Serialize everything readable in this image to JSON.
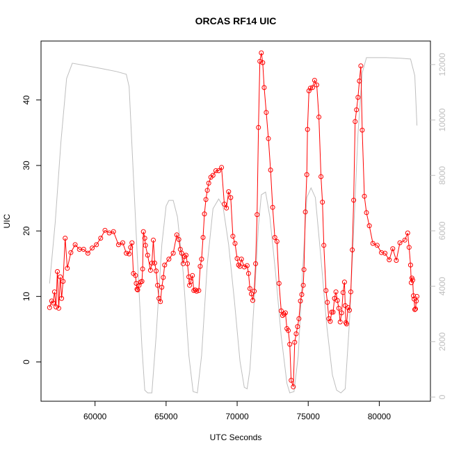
{
  "chart_data": {
    "type": "line",
    "title": "ORCAS RF14 UIC",
    "xlabel": "UTC Seconds",
    "ylabel": "UIC",
    "xlim": [
      56200,
      83600
    ],
    "ylim": [
      -6,
      49
    ],
    "y2lim": [
      -150,
      12850
    ],
    "x_ticks": [
      60000,
      65000,
      70000,
      75000,
      80000
    ],
    "y_ticks": [
      0,
      10,
      20,
      30,
      40
    ],
    "y2_ticks": [
      0,
      2000,
      4000,
      6000,
      8000,
      10000,
      12000
    ],
    "colors": {
      "uic": "#ff0000",
      "altitude": "#bebebe"
    },
    "series": [
      {
        "style": "line+circles",
        "color": "#ff0000",
        "axis": "left",
        "points": [
          [
            56800,
            8.3
          ],
          [
            56950,
            9.3
          ],
          [
            57050,
            9.0
          ],
          [
            57150,
            10.7
          ],
          [
            57250,
            8.4
          ],
          [
            57350,
            13.8
          ],
          [
            57450,
            8.2
          ],
          [
            57550,
            13.0
          ],
          [
            57650,
            9.7
          ],
          [
            57750,
            12.3
          ],
          [
            57900,
            18.9
          ],
          [
            58050,
            14.3
          ],
          [
            58300,
            16.7
          ],
          [
            58600,
            17.9
          ],
          [
            58900,
            17.2
          ],
          [
            59200,
            17.2
          ],
          [
            59500,
            16.6
          ],
          [
            59800,
            17.4
          ],
          [
            60100,
            17.9
          ],
          [
            60400,
            18.9
          ],
          [
            60700,
            20.1
          ],
          [
            61000,
            19.7
          ],
          [
            61300,
            19.9
          ],
          [
            61650,
            17.9
          ],
          [
            61950,
            18.2
          ],
          [
            62200,
            16.6
          ],
          [
            62400,
            16.5
          ],
          [
            62500,
            17.5
          ],
          [
            62600,
            18.2
          ],
          [
            62700,
            13.5
          ],
          [
            62850,
            13.2
          ],
          [
            62900,
            12.0
          ],
          [
            62950,
            11.1
          ],
          [
            63000,
            11.0
          ],
          [
            63100,
            11.7
          ],
          [
            63200,
            12.2
          ],
          [
            63300,
            12.3
          ],
          [
            63350,
            14.2
          ],
          [
            63400,
            19.9
          ],
          [
            63500,
            18.9
          ],
          [
            63550,
            17.8
          ],
          [
            63700,
            16.3
          ],
          [
            63900,
            14.0
          ],
          [
            64000,
            15.1
          ],
          [
            64100,
            18.6
          ],
          [
            64200,
            15.1
          ],
          [
            64300,
            13.9
          ],
          [
            64400,
            11.7
          ],
          [
            64500,
            9.7
          ],
          [
            64600,
            9.2
          ],
          [
            64700,
            11.4
          ],
          [
            64800,
            12.9
          ],
          [
            64900,
            14.8
          ],
          [
            65200,
            15.7
          ],
          [
            65500,
            16.6
          ],
          [
            65750,
            19.4
          ],
          [
            65900,
            18.7
          ],
          [
            66000,
            17.2
          ],
          [
            66100,
            16.6
          ],
          [
            66200,
            15.0
          ],
          [
            66300,
            16.1
          ],
          [
            66400,
            16.3
          ],
          [
            66500,
            15.0
          ],
          [
            66600,
            13.0
          ],
          [
            66650,
            11.7
          ],
          [
            66750,
            12.3
          ],
          [
            66850,
            13.2
          ],
          [
            66950,
            10.9
          ],
          [
            67050,
            11.0
          ],
          [
            67150,
            10.8
          ],
          [
            67300,
            10.9
          ],
          [
            67400,
            14.6
          ],
          [
            67500,
            15.7
          ],
          [
            67600,
            19.0
          ],
          [
            67700,
            22.6
          ],
          [
            67800,
            24.8
          ],
          [
            67900,
            26.2
          ],
          [
            68000,
            27.3
          ],
          [
            68150,
            28.2
          ],
          [
            68300,
            28.5
          ],
          [
            68500,
            29.2
          ],
          [
            68700,
            29.2
          ],
          [
            68900,
            29.7
          ],
          [
            69100,
            24.1
          ],
          [
            69250,
            23.5
          ],
          [
            69400,
            26.0
          ],
          [
            69550,
            25.1
          ],
          [
            69700,
            19.2
          ],
          [
            69850,
            18.1
          ],
          [
            70000,
            15.8
          ],
          [
            70100,
            14.8
          ],
          [
            70200,
            14.6
          ],
          [
            70300,
            15.7
          ],
          [
            70500,
            14.5
          ],
          [
            70700,
            14.7
          ],
          [
            70800,
            13.5
          ],
          [
            70900,
            11.2
          ],
          [
            71000,
            10.4
          ],
          [
            71100,
            9.4
          ],
          [
            71200,
            10.8
          ],
          [
            71300,
            15.0
          ],
          [
            71400,
            22.5
          ],
          [
            71500,
            35.8
          ],
          [
            71600,
            45.9
          ],
          [
            71700,
            47.2
          ],
          [
            71800,
            45.7
          ],
          [
            71900,
            41.9
          ],
          [
            72050,
            38.1
          ],
          [
            72200,
            34.1
          ],
          [
            72350,
            29.3
          ],
          [
            72500,
            23.6
          ],
          [
            72650,
            19.0
          ],
          [
            72800,
            18.4
          ],
          [
            72950,
            12.0
          ],
          [
            73100,
            7.8
          ],
          [
            73200,
            7.1
          ],
          [
            73300,
            7.3
          ],
          [
            73400,
            7.5
          ],
          [
            73500,
            5.1
          ],
          [
            73600,
            4.8
          ],
          [
            73700,
            2.7
          ],
          [
            73800,
            -2.8
          ],
          [
            73950,
            -3.8
          ],
          [
            74050,
            3.0
          ],
          [
            74150,
            4.3
          ],
          [
            74250,
            5.4
          ],
          [
            74350,
            6.6
          ],
          [
            74450,
            9.3
          ],
          [
            74550,
            10.3
          ],
          [
            74650,
            11.7
          ],
          [
            74700,
            14.1
          ],
          [
            74800,
            22.9
          ],
          [
            74900,
            28.6
          ],
          [
            74950,
            35.5
          ],
          [
            75050,
            41.4
          ],
          [
            75150,
            41.8
          ],
          [
            75300,
            41.9
          ],
          [
            75450,
            43.0
          ],
          [
            75600,
            42.3
          ],
          [
            75750,
            37.4
          ],
          [
            75900,
            28.3
          ],
          [
            76000,
            24.4
          ],
          [
            76100,
            17.8
          ],
          [
            76250,
            10.9
          ],
          [
            76350,
            9.1
          ],
          [
            76450,
            6.6
          ],
          [
            76550,
            6.2
          ],
          [
            76650,
            7.6
          ],
          [
            76750,
            7.6
          ],
          [
            76850,
            9.7
          ],
          [
            76950,
            10.7
          ],
          [
            77050,
            9.4
          ],
          [
            77150,
            8.2
          ],
          [
            77250,
            6.1
          ],
          [
            77350,
            7.5
          ],
          [
            77450,
            10.6
          ],
          [
            77550,
            12.2
          ],
          [
            77600,
            8.6
          ],
          [
            77650,
            6.0
          ],
          [
            77700,
            5.8
          ],
          [
            77800,
            8.3
          ],
          [
            77900,
            7.9
          ],
          [
            78000,
            10.7
          ],
          [
            78100,
            17.1
          ],
          [
            78200,
            24.7
          ],
          [
            78300,
            36.7
          ],
          [
            78400,
            38.5
          ],
          [
            78500,
            40.4
          ],
          [
            78600,
            42.9
          ],
          [
            78700,
            45.2
          ],
          [
            78800,
            35.4
          ],
          [
            78950,
            25.3
          ],
          [
            79100,
            22.8
          ],
          [
            79300,
            20.8
          ],
          [
            79550,
            18.1
          ],
          [
            79850,
            17.8
          ],
          [
            80150,
            16.7
          ],
          [
            80400,
            16.6
          ],
          [
            80700,
            15.6
          ],
          [
            80950,
            17.3
          ],
          [
            81200,
            15.5
          ],
          [
            81450,
            18.2
          ],
          [
            81800,
            18.6
          ],
          [
            82000,
            19.7
          ],
          [
            82100,
            17.5
          ],
          [
            82200,
            14.8
          ],
          [
            82250,
            12.1
          ],
          [
            82300,
            12.8
          ],
          [
            82350,
            12.5
          ],
          [
            82400,
            10.1
          ],
          [
            82450,
            9.6
          ],
          [
            82500,
            8.0
          ],
          [
            82550,
            8.1
          ],
          [
            82600,
            9.3
          ],
          [
            82650,
            10.0
          ]
        ]
      },
      {
        "style": "line",
        "color": "#bebebe",
        "axis": "right",
        "points": [
          [
            56800,
            4100
          ],
          [
            57200,
            6300
          ],
          [
            57600,
            9200
          ],
          [
            58000,
            11500
          ],
          [
            58400,
            12050
          ],
          [
            59500,
            11950
          ],
          [
            60500,
            11850
          ],
          [
            61500,
            11750
          ],
          [
            62200,
            11650
          ],
          [
            62400,
            11200
          ],
          [
            62700,
            8000
          ],
          [
            63000,
            4800
          ],
          [
            63300,
            1800
          ],
          [
            63500,
            250
          ],
          [
            63700,
            150
          ],
          [
            64000,
            150
          ],
          [
            64300,
            2200
          ],
          [
            64700,
            5500
          ],
          [
            65000,
            6900
          ],
          [
            65200,
            7100
          ],
          [
            65500,
            7100
          ],
          [
            65800,
            6500
          ],
          [
            66200,
            4500
          ],
          [
            66600,
            1500
          ],
          [
            66900,
            200
          ],
          [
            67200,
            150
          ],
          [
            67500,
            1500
          ],
          [
            67900,
            4800
          ],
          [
            68300,
            6800
          ],
          [
            68700,
            7150
          ],
          [
            69000,
            6900
          ],
          [
            69400,
            5500
          ],
          [
            69800,
            3500
          ],
          [
            70200,
            1300
          ],
          [
            70500,
            350
          ],
          [
            70700,
            300
          ],
          [
            70900,
            1000
          ],
          [
            71200,
            3500
          ],
          [
            71500,
            6200
          ],
          [
            71700,
            7300
          ],
          [
            72000,
            7400
          ],
          [
            72300,
            6500
          ],
          [
            72700,
            4500
          ],
          [
            73100,
            2200
          ],
          [
            73500,
            500
          ],
          [
            73700,
            150
          ],
          [
            74000,
            200
          ],
          [
            74300,
            1500
          ],
          [
            74600,
            4500
          ],
          [
            74900,
            7200
          ],
          [
            75200,
            7550
          ],
          [
            75500,
            7200
          ],
          [
            75900,
            5000
          ],
          [
            76300,
            2600
          ],
          [
            76700,
            800
          ],
          [
            77000,
            250
          ],
          [
            77300,
            150
          ],
          [
            77600,
            300
          ],
          [
            77900,
            2700
          ],
          [
            78200,
            6000
          ],
          [
            78500,
            9500
          ],
          [
            78800,
            11700
          ],
          [
            79100,
            12250
          ],
          [
            79500,
            12250
          ],
          [
            80500,
            12250
          ],
          [
            81500,
            12230
          ],
          [
            82200,
            12200
          ],
          [
            82500,
            11600
          ],
          [
            82650,
            9800
          ]
        ]
      }
    ]
  }
}
